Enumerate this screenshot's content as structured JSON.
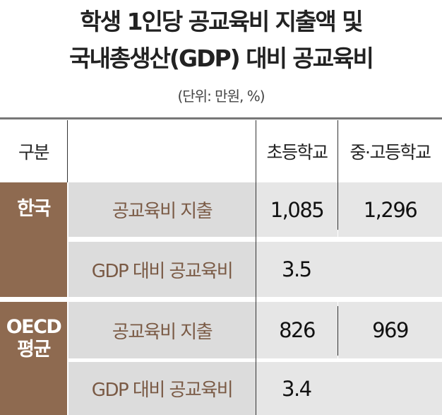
{
  "title_line1": "학생 1인당 공교육비 지출액 및",
  "title_line2": "국내총생산(GDP) 대비 공교육비",
  "unit": "(단위: 만원, %)",
  "header": {
    "category": "구분",
    "col_elementary": "초등학교",
    "col_secondary": "중·고등학교"
  },
  "groups": [
    {
      "name": "한국",
      "rows": [
        {
          "label": "공교육비 지출",
          "elementary": "1,085",
          "secondary": "1,296"
        },
        {
          "label": "GDP 대비 공교육비",
          "value": "3.5"
        }
      ]
    },
    {
      "name_line1": "OECD",
      "name_line2": "평균",
      "rows": [
        {
          "label": "공교육비 지출",
          "elementary": "826",
          "secondary": "969"
        },
        {
          "label": "GDP 대비 공교육비",
          "value": "3.4"
        }
      ]
    }
  ],
  "colors": {
    "brand_brown": "#8e6a50",
    "label_text": "#7a5a45"
  }
}
